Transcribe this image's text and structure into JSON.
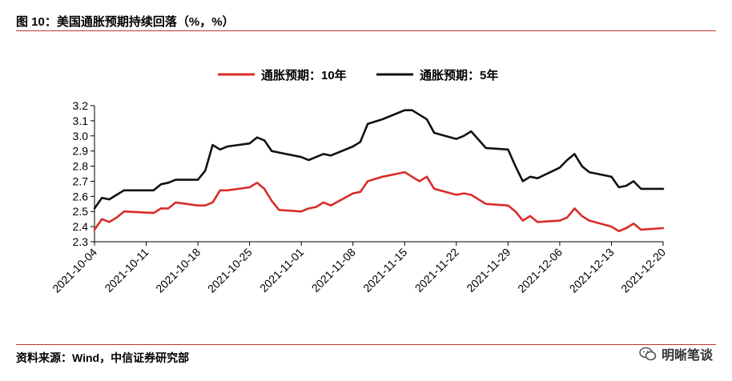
{
  "header": {
    "title": "图 10：美国通胀预期持续回落（%，%）"
  },
  "footer": {
    "source": "资料来源：Wind，中信证券研究部",
    "watermark": "明晰笔谈",
    "watermark_icon": "wechat-icon"
  },
  "colors": {
    "accent": "#c0392b",
    "series_10y": "#d92d27",
    "series_5y": "#111111"
  },
  "chart_data": {
    "type": "line",
    "title": "",
    "xlabel": "",
    "ylabel": "",
    "ylim": [
      2.3,
      3.2
    ],
    "yticks": [
      2.3,
      2.4,
      2.5,
      2.6,
      2.7,
      2.8,
      2.9,
      3.0,
      3.1,
      3.2
    ],
    "ytick_labels": [
      "2.3",
      "2.4",
      "2.5",
      "2.6",
      "2.7",
      "2.8",
      "2.9",
      "3.0",
      "3.1",
      "3.2"
    ],
    "xlim": [
      "2021-10-04",
      "2021-12-20"
    ],
    "xtick_labels": [
      "2021-10-04",
      "2021-10-11",
      "2021-10-18",
      "2021-10-25",
      "2021-11-01",
      "2021-11-08",
      "2021-11-15",
      "2021-11-22",
      "2021-11-29",
      "2021-12-06",
      "2021-12-13",
      "2021-12-20"
    ],
    "legend_position": "top-center",
    "grid": false,
    "series": [
      {
        "name": "通胀预期：10年",
        "color": "#d92d27",
        "x": [
          "2021-10-04",
          "2021-10-05",
          "2021-10-06",
          "2021-10-07",
          "2021-10-08",
          "2021-10-12",
          "2021-10-13",
          "2021-10-14",
          "2021-10-15",
          "2021-10-18",
          "2021-10-19",
          "2021-10-20",
          "2021-10-21",
          "2021-10-22",
          "2021-10-25",
          "2021-10-26",
          "2021-10-27",
          "2021-10-28",
          "2021-10-29",
          "2021-11-01",
          "2021-11-02",
          "2021-11-03",
          "2021-11-04",
          "2021-11-05",
          "2021-11-08",
          "2021-11-09",
          "2021-11-10",
          "2021-11-12",
          "2021-11-15",
          "2021-11-16",
          "2021-11-17",
          "2021-11-18",
          "2021-11-19",
          "2021-11-22",
          "2021-11-23",
          "2021-11-24",
          "2021-11-26",
          "2021-11-29",
          "2021-11-30",
          "2021-12-01",
          "2021-12-02",
          "2021-12-03",
          "2021-12-06",
          "2021-12-07",
          "2021-12-08",
          "2021-12-09",
          "2021-12-10",
          "2021-12-13",
          "2021-12-14",
          "2021-12-15",
          "2021-12-16",
          "2021-12-17",
          "2021-12-20"
        ],
        "y": [
          2.38,
          2.45,
          2.43,
          2.46,
          2.5,
          2.49,
          2.52,
          2.52,
          2.56,
          2.54,
          2.54,
          2.56,
          2.64,
          2.64,
          2.66,
          2.69,
          2.65,
          2.57,
          2.51,
          2.5,
          2.52,
          2.53,
          2.56,
          2.54,
          2.62,
          2.63,
          2.7,
          2.73,
          2.76,
          2.73,
          2.7,
          2.73,
          2.65,
          2.61,
          2.62,
          2.61,
          2.55,
          2.54,
          2.5,
          2.44,
          2.47,
          2.43,
          2.44,
          2.46,
          2.52,
          2.47,
          2.44,
          2.4,
          2.37,
          2.39,
          2.42,
          2.38,
          2.39
        ]
      },
      {
        "name": "通胀预期：5年",
        "color": "#111111",
        "x": [
          "2021-10-04",
          "2021-10-05",
          "2021-10-06",
          "2021-10-07",
          "2021-10-08",
          "2021-10-12",
          "2021-10-13",
          "2021-10-14",
          "2021-10-15",
          "2021-10-18",
          "2021-10-19",
          "2021-10-20",
          "2021-10-21",
          "2021-10-22",
          "2021-10-25",
          "2021-10-26",
          "2021-10-27",
          "2021-10-28",
          "2021-10-29",
          "2021-11-01",
          "2021-11-02",
          "2021-11-03",
          "2021-11-04",
          "2021-11-05",
          "2021-11-08",
          "2021-11-09",
          "2021-11-10",
          "2021-11-12",
          "2021-11-15",
          "2021-11-16",
          "2021-11-17",
          "2021-11-18",
          "2021-11-19",
          "2021-11-22",
          "2021-11-23",
          "2021-11-24",
          "2021-11-26",
          "2021-11-29",
          "2021-11-30",
          "2021-12-01",
          "2021-12-02",
          "2021-12-03",
          "2021-12-06",
          "2021-12-07",
          "2021-12-08",
          "2021-12-09",
          "2021-12-10",
          "2021-12-13",
          "2021-12-14",
          "2021-12-15",
          "2021-12-16",
          "2021-12-17",
          "2021-12-20"
        ],
        "y": [
          2.52,
          2.59,
          2.58,
          2.61,
          2.64,
          2.64,
          2.68,
          2.69,
          2.71,
          2.71,
          2.77,
          2.94,
          2.91,
          2.93,
          2.95,
          2.99,
          2.97,
          2.9,
          2.89,
          2.86,
          2.84,
          2.86,
          2.88,
          2.87,
          2.93,
          2.96,
          3.08,
          3.11,
          3.17,
          3.17,
          3.14,
          3.11,
          3.02,
          2.98,
          3.0,
          3.03,
          2.92,
          2.91,
          2.8,
          2.7,
          2.73,
          2.72,
          2.79,
          2.84,
          2.88,
          2.8,
          2.76,
          2.73,
          2.66,
          2.67,
          2.7,
          2.65,
          2.65
        ]
      }
    ]
  }
}
